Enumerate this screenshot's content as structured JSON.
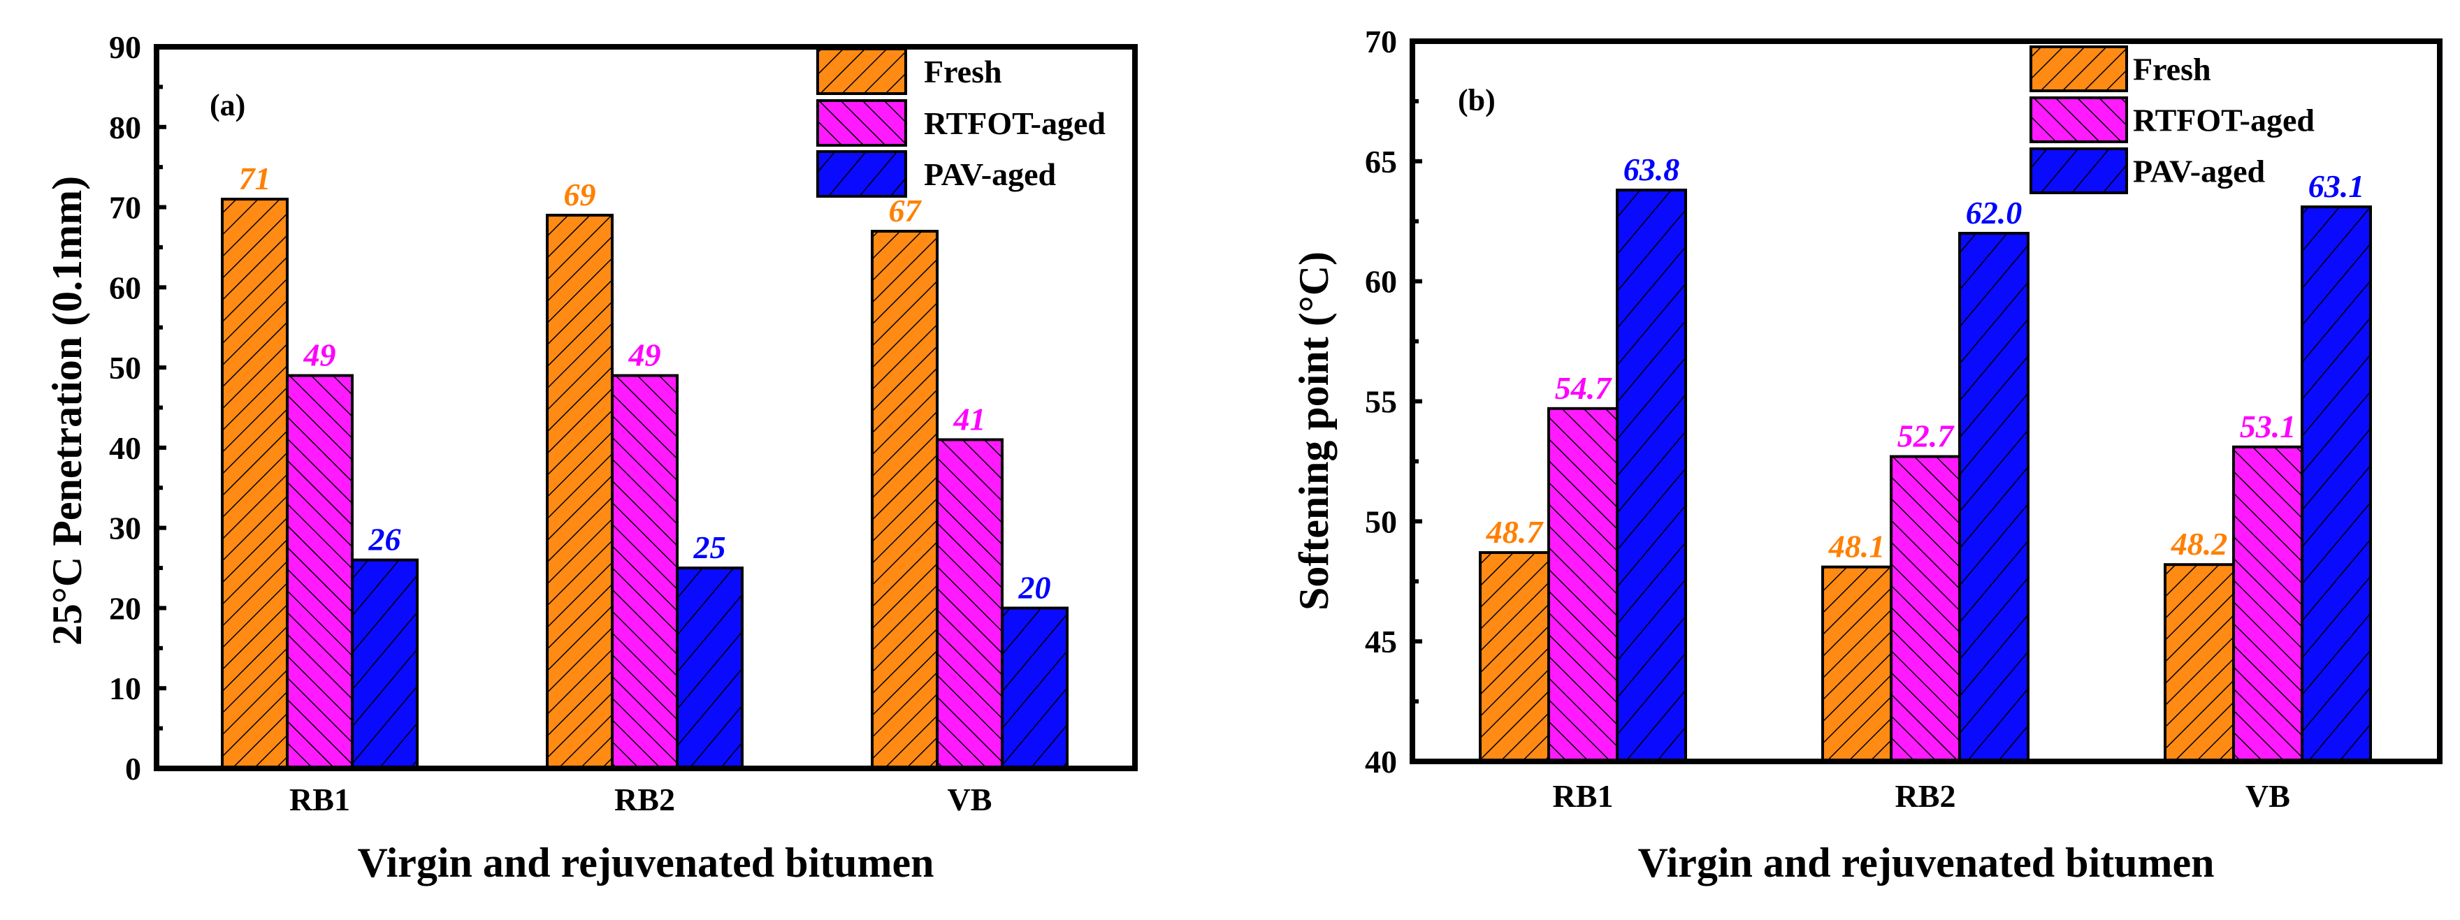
{
  "colors": {
    "Fresh": "#ff8a14",
    "RTFOT-aged": "#ff1aff",
    "PAV-aged": "#0a0aff",
    "label_Fresh": "#ff8000",
    "label_RTFOT-aged": "#ff00ff",
    "label_PAV-aged": "#0000ff"
  },
  "chart_data": [
    {
      "type": "bar",
      "panel": "(a)",
      "title": "",
      "xlabel": "Virgin and rejuvenated bitumen",
      "ylabel": "25°C Penetration (0.1mm)",
      "ylim": [
        0,
        90
      ],
      "yticks": [
        0,
        10,
        20,
        30,
        40,
        50,
        60,
        70,
        80,
        90
      ],
      "categories": [
        "RB1",
        "RB2",
        "VB"
      ],
      "legend": "top-right",
      "series": [
        {
          "name": "Fresh",
          "values": [
            71,
            69,
            67
          ],
          "labels": [
            "71",
            "69",
            "67"
          ]
        },
        {
          "name": "RTFOT-aged",
          "values": [
            49,
            49,
            41
          ],
          "labels": [
            "49",
            "49",
            "41"
          ]
        },
        {
          "name": "PAV-aged",
          "values": [
            26,
            25,
            20
          ],
          "labels": [
            "26",
            "25",
            "20"
          ]
        }
      ]
    },
    {
      "type": "bar",
      "panel": "(b)",
      "title": "",
      "xlabel": "Virgin and rejuvenated bitumen",
      "ylabel": "Softening point (°C)",
      "ylim": [
        40,
        70
      ],
      "yticks": [
        40,
        45,
        50,
        55,
        60,
        65,
        70
      ],
      "categories": [
        "RB1",
        "RB2",
        "VB"
      ],
      "legend": "top-right",
      "series": [
        {
          "name": "Fresh",
          "values": [
            48.7,
            48.1,
            48.2
          ],
          "labels": [
            "48.7",
            "48.1",
            "48.2"
          ]
        },
        {
          "name": "RTFOT-aged",
          "values": [
            54.7,
            52.7,
            53.1
          ],
          "labels": [
            "54.7",
            "52.7",
            "53.1"
          ]
        },
        {
          "name": "PAV-aged",
          "values": [
            63.8,
            62.0,
            63.1
          ],
          "labels": [
            "63.8",
            "62.0",
            "63.1"
          ]
        }
      ]
    }
  ]
}
